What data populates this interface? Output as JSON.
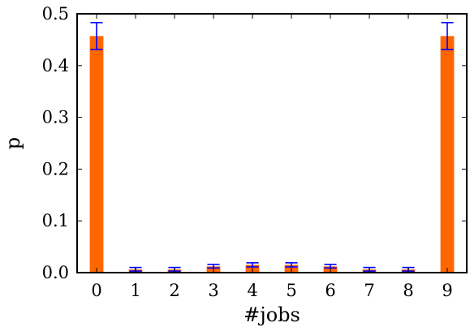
{
  "chart_data": {
    "type": "bar",
    "title": "",
    "xlabel": "#jobs",
    "ylabel": "p",
    "categories": [
      "0",
      "1",
      "2",
      "3",
      "4",
      "5",
      "6",
      "7",
      "8",
      "9"
    ],
    "values": [
      0.457,
      0.006,
      0.006,
      0.012,
      0.015,
      0.015,
      0.012,
      0.006,
      0.006,
      0.457
    ],
    "error_low": [
      0.431,
      0.003,
      0.003,
      0.009,
      0.011,
      0.011,
      0.009,
      0.003,
      0.003,
      0.431
    ],
    "error_high": [
      0.483,
      0.01,
      0.01,
      0.016,
      0.019,
      0.019,
      0.016,
      0.01,
      0.01,
      0.483
    ],
    "ylim": [
      0.0,
      0.5
    ],
    "yticks": [
      0.0,
      0.1,
      0.2,
      0.3,
      0.4,
      0.5
    ],
    "ytick_labels": [
      "0.0",
      "0.1",
      "0.2",
      "0.3",
      "0.4",
      "0.5"
    ],
    "grid": false,
    "legend": "none",
    "colors": {
      "bar": "#ff6600",
      "error_bar": "#0000ff",
      "axis": "#000000"
    }
  }
}
